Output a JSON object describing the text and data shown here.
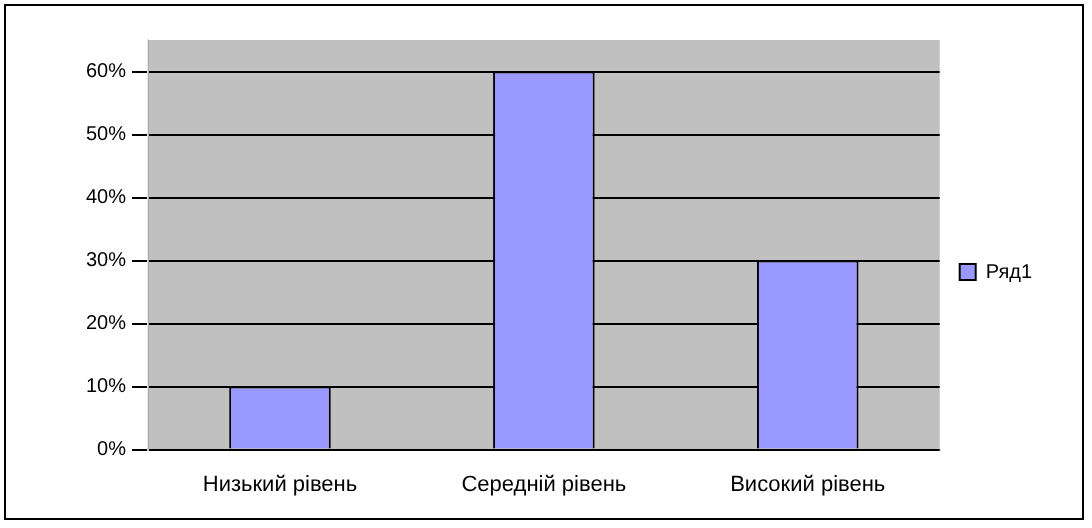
{
  "chart_data": {
    "type": "bar",
    "categories": [
      "Низький рівень",
      "Середній рівень",
      "Високий рівень"
    ],
    "series": [
      {
        "name": "Ряд1",
        "color": "#9999ff",
        "values": [
          10,
          60,
          30
        ]
      }
    ],
    "ylim": [
      0,
      65
    ],
    "yticks": [
      {
        "value": 0,
        "label": "0%"
      },
      {
        "value": 10,
        "label": "10%"
      },
      {
        "value": 20,
        "label": "20%"
      },
      {
        "value": 30,
        "label": "30%"
      },
      {
        "value": 40,
        "label": "40%"
      },
      {
        "value": 50,
        "label": "50%"
      },
      {
        "value": 60,
        "label": "60%"
      }
    ],
    "grid": "y",
    "legend": "right"
  }
}
